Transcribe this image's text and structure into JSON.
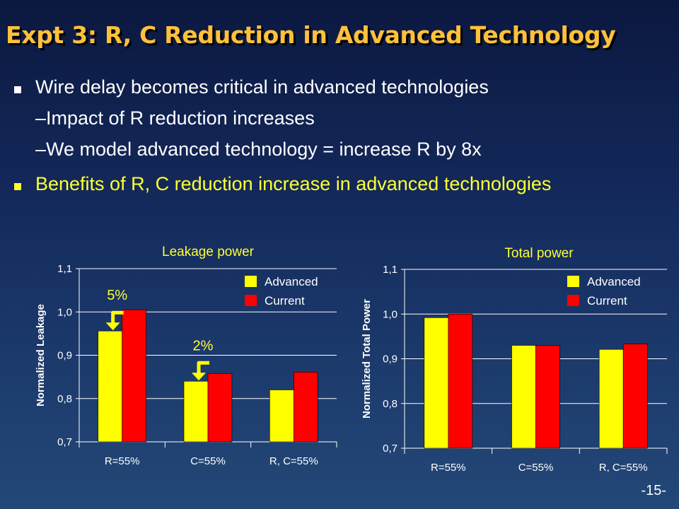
{
  "slide": {
    "title": "Expt 3: R, C Reduction in Advanced Technology",
    "page_number": "-15-"
  },
  "bullets": [
    {
      "text": "Wire delay becomes critical in advanced technologies",
      "level": 1,
      "color": "#ffffff"
    },
    {
      "text": "–Impact of R reduction increases",
      "level": 2,
      "color": "#ffffff"
    },
    {
      "text": "–We model advanced technology = increase R by 8x",
      "level": 2,
      "color": "#ffffff"
    },
    {
      "text": "Benefits of R, C reduction increase in advanced technologies",
      "level": 1,
      "color": "#ffff33"
    }
  ],
  "chart_data": [
    {
      "type": "bar",
      "title": "Leakage power",
      "ylabel": "Normalized Leakage",
      "xlabel": "",
      "categories": [
        "R=55%",
        "C=55%",
        "R, C=55%"
      ],
      "ylim": [
        0.7,
        1.1
      ],
      "yticks": [
        "0,7",
        "0,8",
        "0,9",
        "1,0",
        "1,1"
      ],
      "grid": true,
      "legend": "top-right",
      "series": [
        {
          "name": "Advanced",
          "color": "#ffff00",
          "values": [
            0.956,
            0.84,
            0.82
          ]
        },
        {
          "name": "Current",
          "color": "#ff0000",
          "values": [
            1.005,
            0.858,
            0.861
          ]
        }
      ],
      "annotations": [
        {
          "text": "5%",
          "category": 0
        },
        {
          "text": "2%",
          "category": 1
        }
      ]
    },
    {
      "type": "bar",
      "title": "Total power",
      "ylabel": "Normalized Total Power",
      "xlabel": "",
      "categories": [
        "R=55%",
        "C=55%",
        "R, C=55%"
      ],
      "ylim": [
        0.7,
        1.1
      ],
      "yticks": [
        "0,7",
        "0,8",
        "0,9",
        "1,0",
        "1,1"
      ],
      "grid": true,
      "legend": "top-right",
      "series": [
        {
          "name": "Advanced",
          "color": "#ffff00",
          "values": [
            0.992,
            0.93,
            0.921
          ]
        },
        {
          "name": "Current",
          "color": "#ff0000",
          "values": [
            1.0,
            0.93,
            0.933
          ]
        }
      ],
      "annotations": []
    }
  ]
}
